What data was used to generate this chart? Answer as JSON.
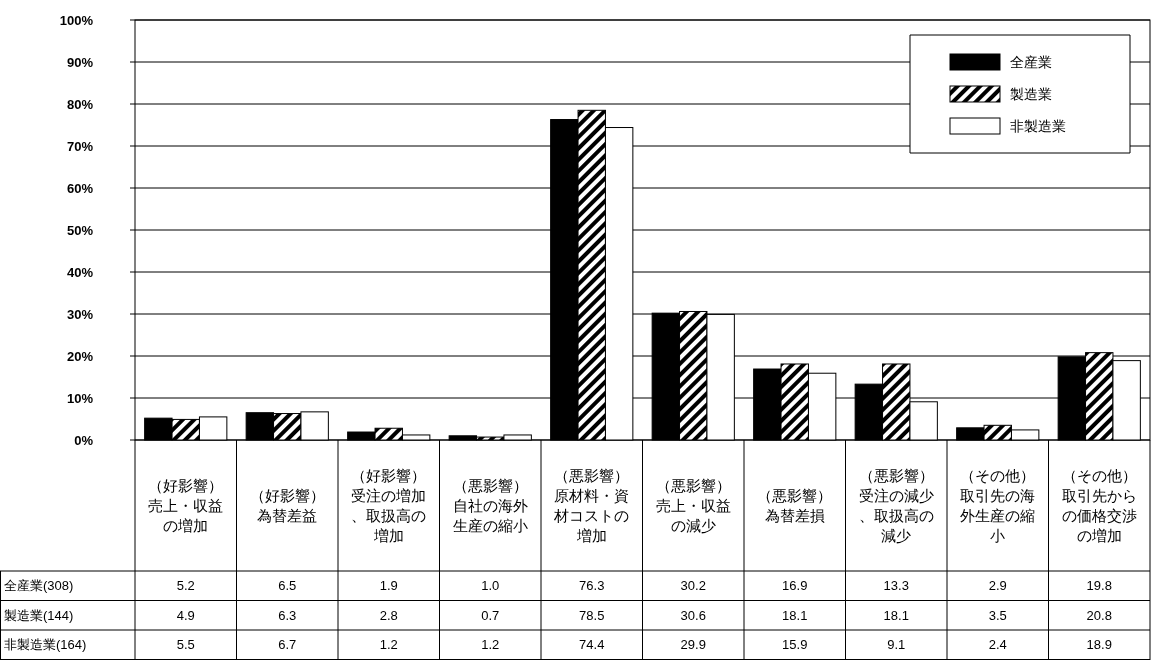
{
  "chart_data": {
    "type": "bar",
    "categories": [
      "（好影響）売上・収益の増加",
      "（好影響）為替差益",
      "（好影響）受注の増加、取扱高の増加",
      "（悪影響）自社の海外生産の縮小",
      "（悪影響）原材料・資材コストの増加",
      "（悪影響）売上・収益の減少",
      "（悪影響）為替差損",
      "（悪影響）受注の減少、取扱高の減少",
      "（その他）取引先の海外生産の縮小",
      "（その他）取引先からの価格交渉の増加"
    ],
    "series": [
      {
        "name": "全産業",
        "color": "#000000",
        "values": [
          5.2,
          6.5,
          1.9,
          1.0,
          76.3,
          30.2,
          16.9,
          13.3,
          2.9,
          19.8
        ],
        "value_labels": [
          "5.2",
          "6.5",
          "1.9",
          "1.0",
          "76.3",
          "30.2",
          "16.9",
          "13.3",
          "2.9",
          "19.8"
        ]
      },
      {
        "name": "製造業",
        "color": "#000000",
        "values": [
          4.9,
          6.3,
          2.8,
          0.7,
          78.5,
          30.6,
          18.1,
          18.1,
          3.5,
          20.8
        ],
        "value_labels": [
          "4.9",
          "6.3",
          "2.8",
          "0.7",
          "78.5",
          "30.6",
          "18.1",
          "18.1",
          "3.5",
          "20.8"
        ]
      },
      {
        "name": "非製造業",
        "color": "#ffffff",
        "values": [
          5.5,
          6.7,
          1.2,
          1.2,
          74.4,
          29.9,
          15.9,
          9.1,
          2.4,
          18.9
        ],
        "value_labels": [
          "5.5",
          "6.7",
          "1.2",
          "1.2",
          "74.4",
          "29.9",
          "15.9",
          "9.1",
          "2.4",
          "18.9"
        ]
      }
    ],
    "annotations": [
      "(308)",
      "(144)",
      "(164)"
    ],
    "ylim": [
      0,
      100
    ],
    "yticks": [
      {
        "value": 0,
        "label": "0%"
      },
      {
        "value": 10,
        "label": "10%"
      },
      {
        "value": 20,
        "label": "20%"
      },
      {
        "value": 30,
        "label": "30%"
      },
      {
        "value": 40,
        "label": "40%"
      },
      {
        "value": 50,
        "label": "50%"
      },
      {
        "value": 60,
        "label": "60%"
      },
      {
        "value": 70,
        "label": "70%"
      },
      {
        "value": 80,
        "label": "80%"
      },
      {
        "value": 90,
        "label": "90%"
      },
      {
        "value": 100,
        "label": "100%"
      }
    ],
    "grid": "y",
    "legend": "top right"
  }
}
